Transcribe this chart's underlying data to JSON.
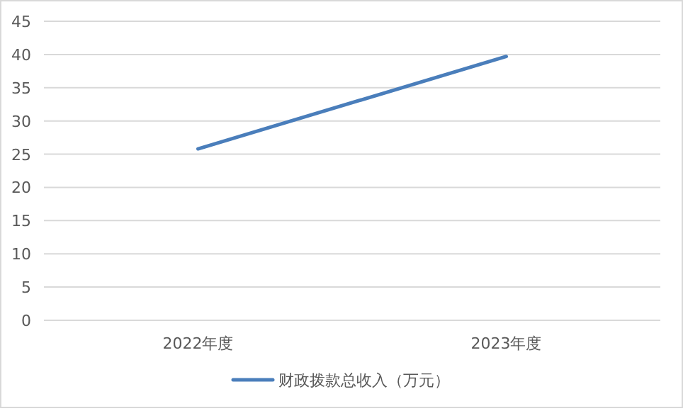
{
  "chart_data": {
    "type": "line",
    "categories": [
      "2022年度",
      "2023年度"
    ],
    "series": [
      {
        "name": "财政拨款总收入（万元）",
        "color": "#4a7ebb",
        "values": [
          25.8,
          39.7
        ]
      }
    ],
    "ylim": [
      0,
      45
    ],
    "yticks": [
      0,
      5,
      10,
      15,
      20,
      25,
      30,
      35,
      40,
      45
    ],
    "grid": "y",
    "legend": "bottom",
    "marker": "none",
    "line_style": "solid"
  }
}
